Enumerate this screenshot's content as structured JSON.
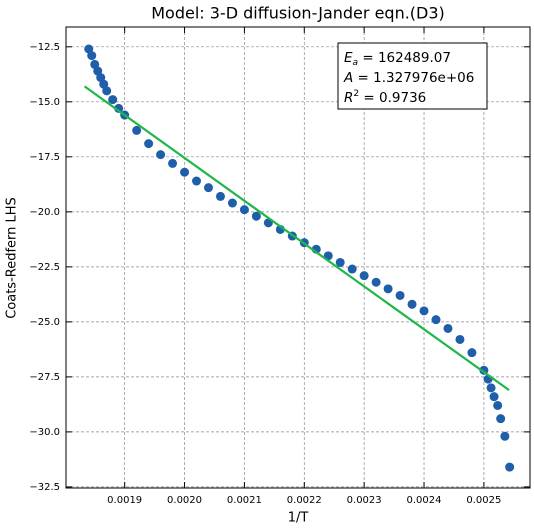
{
  "chart_data": {
    "type": "scatter",
    "title": "Model: 3-D diffusion-Jander eqn.(D3)",
    "x_label": "1/T",
    "y_label": "Coats-Redfern LHS",
    "xlim": [
      0.001802,
      0.002577
    ],
    "ylim": [
      -11.6,
      -32.55
    ],
    "xticks": [
      0.0019,
      0.002,
      0.0021,
      0.0022,
      0.0023,
      0.0024,
      0.0025
    ],
    "xtick_labels": [
      "0.0019",
      "0.0020",
      "0.0021",
      "0.0022",
      "0.0023",
      "0.0024",
      "0.0025"
    ],
    "yticks": [
      {
        "value": -12.5,
        "label": "−12.5"
      },
      {
        "value": -15,
        "label": "−15.0"
      },
      {
        "value": -17.5,
        "label": "−17.5"
      },
      {
        "value": -20,
        "label": "−20.0"
      },
      {
        "value": -22.5,
        "label": "−22.5"
      },
      {
        "value": -25,
        "label": "−25.0"
      },
      {
        "value": -27.5,
        "label": "−27.5"
      },
      {
        "value": -30,
        "label": "−30.0"
      },
      {
        "value": -32.5,
        "label": "−32.5"
      }
    ],
    "grid": true,
    "series": [
      {
        "color": "#1f5ea8",
        "x": [
          0.00184,
          0.001845,
          0.00185,
          0.001855,
          0.00186,
          0.001865,
          0.00187,
          0.00188,
          0.00189,
          0.0019,
          0.00192,
          0.00194,
          0.00196,
          0.00198,
          0.002,
          0.00202,
          0.00204,
          0.00206,
          0.00208,
          0.0021,
          0.00212,
          0.00214,
          0.00216,
          0.00218,
          0.0022,
          0.00222,
          0.00224,
          0.00226,
          0.00228,
          0.0023,
          0.00232,
          0.00234,
          0.00236,
          0.00238,
          0.0024,
          0.00242,
          0.00244,
          0.00246,
          0.00248,
          0.0025,
          0.002507,
          0.002512,
          0.002517,
          0.002523,
          0.002528,
          0.002535,
          0.002543
        ],
        "values": [
          -12.6,
          -12.9,
          -13.3,
          -13.6,
          -13.9,
          -14.2,
          -14.5,
          -14.9,
          -15.3,
          -15.6,
          -16.3,
          -16.9,
          -17.4,
          -17.8,
          -18.2,
          -18.6,
          -18.9,
          -19.3,
          -19.6,
          -19.9,
          -20.2,
          -20.5,
          -20.8,
          -21.1,
          -21.4,
          -21.7,
          -22.0,
          -22.3,
          -22.6,
          -22.9,
          -23.2,
          -23.5,
          -23.8,
          -24.2,
          -24.5,
          -24.9,
          -25.3,
          -25.8,
          -26.4,
          -27.2,
          -27.6,
          -28.0,
          -28.4,
          -28.8,
          -29.4,
          -30.2,
          -31.6
        ]
      },
      {
        "type": "line",
        "color": "#1db847",
        "x": [
          0.001833,
          0.002542
        ],
        "values": [
          -14.3,
          -28.1
        ]
      }
    ],
    "annotation": [
      {
        "symbol": "E",
        "sub": "a",
        "text": " = 162489.07"
      },
      {
        "symbol": "A",
        "text": " = 1.327976e+06"
      },
      {
        "symbol": "R",
        "sup": "2",
        "text": " = 0.9736"
      }
    ]
  }
}
